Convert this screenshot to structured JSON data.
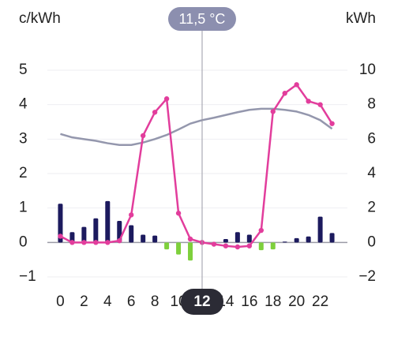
{
  "chart_data": {
    "type": "combo",
    "y_label": "c/kWh",
    "y2_label": "kWh",
    "annotation": "11,5 °C",
    "selected_x": 12,
    "x": [
      0,
      1,
      2,
      3,
      4,
      5,
      6,
      7,
      8,
      9,
      10,
      11,
      12,
      13,
      14,
      15,
      16,
      17,
      18,
      19,
      20,
      21,
      22,
      23
    ],
    "xlim": [
      -1.1,
      24.3
    ],
    "xticks": [
      0,
      2,
      4,
      6,
      8,
      10,
      14,
      16,
      18,
      20,
      22
    ],
    "ylim": [
      -1,
      5
    ],
    "yticks": [
      {
        "value": -1,
        "label": "−1"
      },
      0,
      1,
      2,
      3,
      4,
      5
    ],
    "y2lim": [
      -2,
      10
    ],
    "y2ticks": [
      {
        "value": -2,
        "label": "−2"
      },
      0,
      2,
      4,
      6,
      8,
      10
    ],
    "grid": true,
    "series": [
      {
        "type": "bar",
        "axis": "y2",
        "color": "#1c1a5e",
        "negative_color": "#7ed03c",
        "values": [
          2.25,
          0.6,
          0.9,
          1.4,
          2.4,
          1.25,
          1.0,
          0.45,
          0.4,
          -0.4,
          -0.7,
          -1.05,
          0,
          0,
          0.2,
          0.6,
          0.45,
          -0.45,
          -0.4,
          0.05,
          0.25,
          0.35,
          1.5,
          0.55
        ]
      },
      {
        "type": "line",
        "axis": "y",
        "color": "#9497ad",
        "values": [
          3.15,
          3.05,
          3.0,
          2.95,
          2.88,
          2.83,
          2.83,
          2.9,
          3.0,
          3.12,
          3.28,
          3.45,
          3.55,
          3.62,
          3.7,
          3.78,
          3.85,
          3.88,
          3.88,
          3.85,
          3.8,
          3.7,
          3.55,
          3.3
        ]
      },
      {
        "type": "line",
        "axis": "y",
        "color": "#e23d9c",
        "markers": true,
        "values": [
          0.18,
          0,
          0,
          0,
          0,
          0.05,
          0.8,
          3.1,
          3.78,
          4.17,
          0.85,
          0.1,
          0,
          -0.05,
          -0.1,
          -0.13,
          -0.1,
          0.35,
          3.8,
          4.33,
          4.58,
          4.1,
          4.0,
          3.45
        ]
      }
    ]
  }
}
